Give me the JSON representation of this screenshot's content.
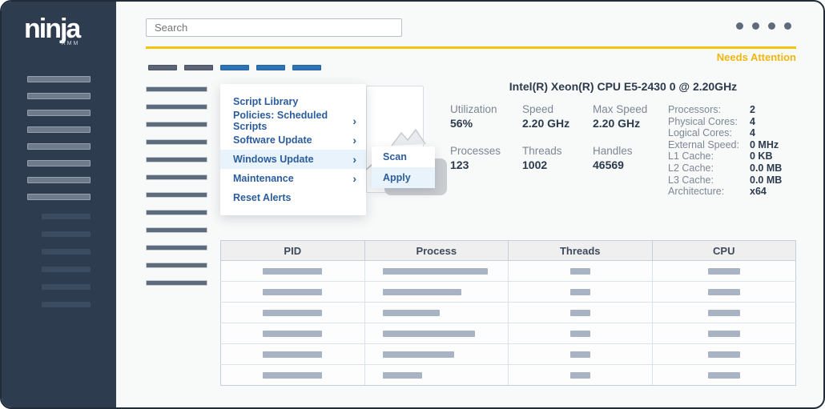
{
  "brand": {
    "logo": "ninja",
    "logo_sub": "RMM"
  },
  "topbar": {
    "search_placeholder": "Search",
    "window_dots": 4
  },
  "status": {
    "needs_attention": "Needs Attention"
  },
  "icons": {
    "chevron_right": "›"
  },
  "tabs_skeleton": [
    "slate",
    "slate",
    "blue",
    "blue",
    "blue"
  ],
  "skeleton": {
    "sidebar_nav_bars": 8,
    "sidebar_sub_bars": 6,
    "content_list_bars": 12
  },
  "context_menu": {
    "items": [
      {
        "label": "Script Library",
        "submenu": false,
        "highlighted": false
      },
      {
        "label": "Policies: Scheduled Scripts",
        "submenu": true,
        "highlighted": false
      },
      {
        "label": "Software Update",
        "submenu": true,
        "highlighted": false
      },
      {
        "label": "Windows Update",
        "submenu": true,
        "highlighted": true
      },
      {
        "label": "Maintenance",
        "submenu": true,
        "highlighted": false
      },
      {
        "label": "Reset Alerts",
        "submenu": false,
        "highlighted": false
      }
    ]
  },
  "submenu": {
    "items": [
      {
        "label": "Scan",
        "highlighted": false
      },
      {
        "label": "Apply",
        "highlighted": true
      }
    ]
  },
  "cpu_panel": {
    "title": "Intel(R) Xeon(R) CPU E5-2430 0 @ 2.20GHz",
    "stats": [
      {
        "label": "Utilization",
        "value": "56%"
      },
      {
        "label": "Speed",
        "value": "2.20 GHz"
      },
      {
        "label": "Max Speed",
        "value": "2.20 GHz"
      },
      {
        "label": "Processes",
        "value": "123"
      },
      {
        "label": "Threads",
        "value": "1002"
      },
      {
        "label": "Handles",
        "value": "46569"
      }
    ],
    "specs": [
      {
        "label": "Processors:",
        "value": "2"
      },
      {
        "label": "Physical Cores:",
        "value": "4"
      },
      {
        "label": "Logical Cores:",
        "value": "4"
      },
      {
        "label": "External Speed:",
        "value": "0 MHz"
      },
      {
        "label": "L1 Cache:",
        "value": "0 KB"
      },
      {
        "label": "L2 Cache:",
        "value": "0.0 MB"
      },
      {
        "label": "L3 Cache:",
        "value": "0.0 MB"
      },
      {
        "label": "Architecture:",
        "value": "x64"
      }
    ]
  },
  "process_table": {
    "columns": [
      "PID",
      "Process",
      "Threads",
      "CPU"
    ],
    "placeholder_rows": [
      {
        "pid_w": 74,
        "process_w": 131,
        "threads_w": 25,
        "cpu_w": 40
      },
      {
        "pid_w": 74,
        "process_w": 98,
        "threads_w": 25,
        "cpu_w": 40
      },
      {
        "pid_w": 74,
        "process_w": 71,
        "threads_w": 25,
        "cpu_w": 40
      },
      {
        "pid_w": 74,
        "process_w": 115,
        "threads_w": 25,
        "cpu_w": 40
      },
      {
        "pid_w": 74,
        "process_w": 89,
        "threads_w": 25,
        "cpu_w": 40
      },
      {
        "pid_w": 74,
        "process_w": 49,
        "threads_w": 25,
        "cpu_w": 40
      }
    ]
  },
  "colors": {
    "sidebar": "#2e3c50",
    "accent_blue": "#2e74b5",
    "accent_yellow": "#f6c40e",
    "attention_text": "#f0b60d",
    "menu_text": "#2b5d9d"
  }
}
